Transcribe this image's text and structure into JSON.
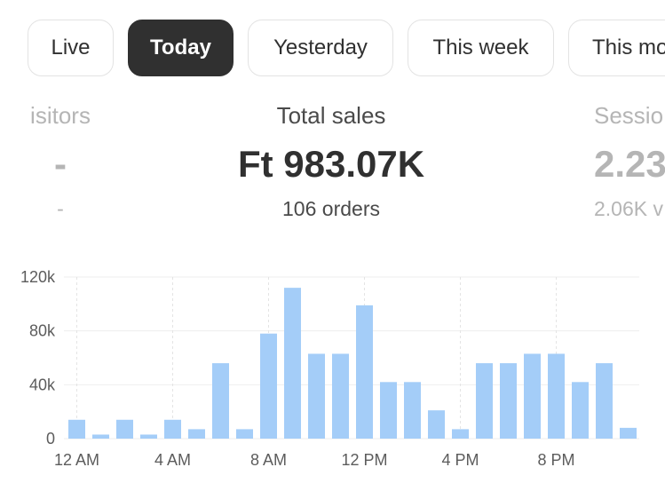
{
  "filters": {
    "live": "Live",
    "today": "Today",
    "yesterday": "Yesterday",
    "this_week": "This week",
    "this_month": "This mo"
  },
  "metrics": {
    "visitors": {
      "label": "isitors",
      "value": "-",
      "sub": "-"
    },
    "total_sales": {
      "label": "Total sales",
      "value": "Ft 983.07K",
      "sub": "106 orders"
    },
    "sessions": {
      "label": "Sessio",
      "value": "2.23",
      "sub": "2.06K v"
    }
  },
  "colors": {
    "bar": "#a4cdf8",
    "active_chip": "#303030",
    "grid": "#eeeeee"
  },
  "chart_data": {
    "type": "bar",
    "categories": [
      "12 AM",
      "1 AM",
      "2 AM",
      "3 AM",
      "4 AM",
      "5 AM",
      "6 AM",
      "7 AM",
      "8 AM",
      "9 AM",
      "10 AM",
      "11 AM",
      "12 PM",
      "1 PM",
      "2 PM",
      "3 PM",
      "4 PM",
      "5 PM",
      "6 PM",
      "7 PM",
      "8 PM",
      "9 PM",
      "10 PM",
      "11 PM"
    ],
    "values": [
      14000,
      3000,
      14000,
      3000,
      14000,
      7000,
      56000,
      7000,
      78000,
      112000,
      63000,
      63000,
      99000,
      42000,
      42000,
      21000,
      7000,
      56000,
      56000,
      63000,
      63000,
      42000,
      56000,
      8000
    ],
    "y_ticks": [
      0,
      40000,
      80000,
      120000
    ],
    "y_tick_labels": [
      "0",
      "40k",
      "80k",
      "120k"
    ],
    "x_tick_labels": [
      {
        "index": 0,
        "label": "12 AM"
      },
      {
        "index": 4,
        "label": "4 AM"
      },
      {
        "index": 8,
        "label": "8 AM"
      },
      {
        "index": 12,
        "label": "12 PM"
      },
      {
        "index": 16,
        "label": "4 PM"
      },
      {
        "index": 20,
        "label": "8 PM"
      }
    ],
    "ylim": [
      0,
      120000
    ],
    "grid": true
  }
}
